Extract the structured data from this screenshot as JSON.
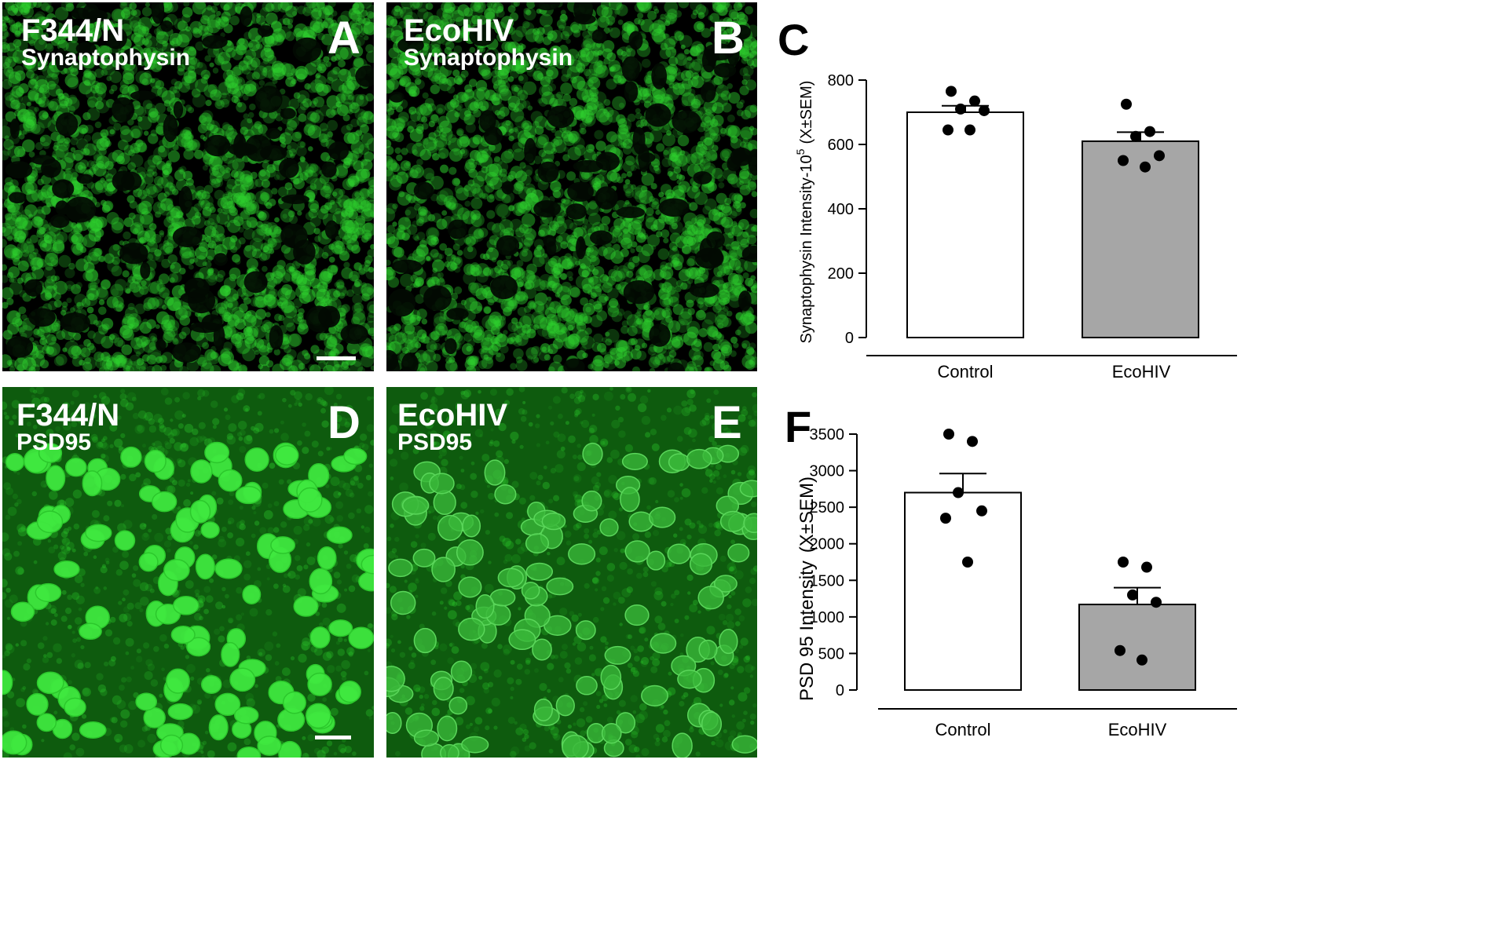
{
  "colors": {
    "stain_green": "#2ed12e",
    "background": "#000000",
    "bar_control": "#ffffff",
    "bar_ecohiv": "#a6a6a6"
  },
  "panels": {
    "A": {
      "letter": "A",
      "strain": "F344/N",
      "stain": "Synaptophysin",
      "seed": 11,
      "type": "synaptophysin"
    },
    "B": {
      "letter": "B",
      "strain": "EcoHIV",
      "stain": "Synaptophysin",
      "seed": 29,
      "type": "synaptophysin"
    },
    "D": {
      "letter": "D",
      "strain": "F344/N",
      "stain": "PSD95",
      "seed": 47,
      "type": "psd95"
    },
    "E": {
      "letter": "E",
      "strain": "EcoHIV",
      "stain": "PSD95",
      "seed": 83,
      "type": "psd95"
    }
  },
  "chart_data": [
    {
      "panel": "C",
      "type": "bar",
      "categories": [
        "Control",
        "EcoHIV"
      ],
      "values": [
        700,
        610
      ],
      "sem": [
        20,
        28
      ],
      "points": [
        [
          765,
          735,
          710,
          705,
          645,
          645
        ],
        [
          725,
          640,
          625,
          565,
          550,
          530
        ]
      ],
      "ylabel_main": "Synaptophysin Intensity-10",
      "ylabel_sup": "5",
      "ylabel_tail": "(X±SEM)",
      "yticks": [
        "0",
        "200",
        "400",
        "600",
        "800"
      ],
      "ylim": [
        0,
        800
      ]
    },
    {
      "panel": "F",
      "type": "bar",
      "categories": [
        "Control",
        "EcoHIV"
      ],
      "values": [
        2700,
        1170
      ],
      "sem": [
        260,
        230
      ],
      "points": [
        [
          3500,
          3400,
          2700,
          2450,
          2350,
          1750
        ],
        [
          1750,
          1680,
          1300,
          1200,
          540,
          410
        ]
      ],
      "ylabel_main": "PSD 95 Intensity",
      "ylabel_tail": "(X±SEM)",
      "yticks": [
        "0",
        "500",
        "1000",
        "1500",
        "2000",
        "2500",
        "3000",
        "3500"
      ],
      "ylim": [
        0,
        3500
      ]
    }
  ]
}
